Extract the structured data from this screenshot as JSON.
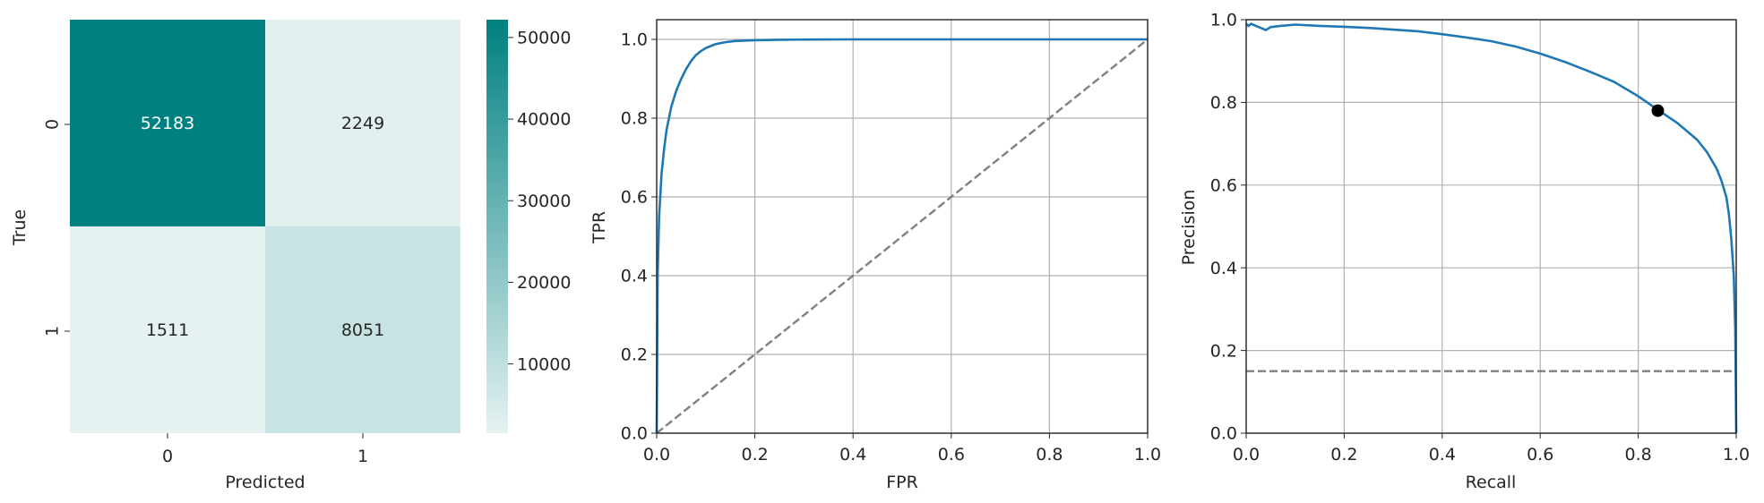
{
  "colors": {
    "teal": "#008080",
    "curve": "#1f77b4",
    "reference": "#808080",
    "grid": "#b0b0b0",
    "marker": "#000000"
  },
  "chart_data": [
    {
      "type": "heatmap",
      "xlabel": "Predicted",
      "ylabel": "True",
      "x_categories": [
        "0",
        "1"
      ],
      "y_categories": [
        "0",
        "1"
      ],
      "matrix": [
        [
          52183,
          2249
        ],
        [
          1511,
          8051
        ]
      ],
      "colorbar": {
        "min": 1511,
        "max": 52183,
        "ticks": [
          10000,
          20000,
          30000,
          40000,
          50000
        ],
        "palette": "light-to-teal"
      }
    },
    {
      "type": "line",
      "xlabel": "FPR",
      "ylabel": "TPR",
      "xlim": [
        0,
        1
      ],
      "ylim": [
        0,
        1.05
      ],
      "xticks": [
        "0.0",
        "0.2",
        "0.4",
        "0.6",
        "0.8",
        "1.0"
      ],
      "yticks": [
        "0.0",
        "0.2",
        "0.4",
        "0.6",
        "0.8",
        "1.0"
      ],
      "grid": true,
      "series": [
        {
          "style": "solid",
          "x": [
            0,
            0.002,
            0.005,
            0.01,
            0.015,
            0.02,
            0.03,
            0.04,
            0.05,
            0.06,
            0.07,
            0.08,
            0.09,
            0.1,
            0.12,
            0.14,
            0.16,
            0.2,
            0.25,
            0.3,
            0.4,
            0.5,
            0.6,
            0.7,
            0.8,
            0.9,
            1.0
          ],
          "y": [
            0,
            0.4,
            0.55,
            0.66,
            0.72,
            0.77,
            0.83,
            0.87,
            0.9,
            0.925,
            0.945,
            0.96,
            0.97,
            0.978,
            0.988,
            0.993,
            0.996,
            0.998,
            0.999,
            0.9995,
            1.0,
            1.0,
            1.0,
            1.0,
            1.0,
            1.0,
            1.0
          ]
        },
        {
          "style": "dashed",
          "x": [
            0,
            1
          ],
          "y": [
            0,
            1
          ]
        }
      ]
    },
    {
      "type": "line",
      "xlabel": "Recall",
      "ylabel": "Precision",
      "xlim": [
        0,
        1
      ],
      "ylim": [
        0,
        1
      ],
      "xticks": [
        "0.0",
        "0.2",
        "0.4",
        "0.6",
        "0.8",
        "1.0"
      ],
      "yticks": [
        "0.0",
        "0.2",
        "0.4",
        "0.6",
        "0.8",
        "1.0"
      ],
      "grid": true,
      "series": [
        {
          "style": "solid",
          "x": [
            0,
            0.005,
            0.01,
            0.02,
            0.03,
            0.04,
            0.05,
            0.07,
            0.1,
            0.15,
            0.2,
            0.25,
            0.3,
            0.35,
            0.4,
            0.45,
            0.5,
            0.55,
            0.6,
            0.65,
            0.7,
            0.75,
            0.8,
            0.84,
            0.88,
            0.9,
            0.92,
            0.94,
            0.96,
            0.97,
            0.98,
            0.985,
            0.99,
            0.995,
            0.998,
            1.0
          ],
          "y": [
            0.99,
            0.985,
            0.99,
            0.985,
            0.98,
            0.975,
            0.982,
            0.985,
            0.988,
            0.985,
            0.983,
            0.98,
            0.976,
            0.972,
            0.965,
            0.957,
            0.948,
            0.935,
            0.918,
            0.898,
            0.875,
            0.85,
            0.815,
            0.782,
            0.75,
            0.73,
            0.71,
            0.68,
            0.64,
            0.61,
            0.57,
            0.53,
            0.47,
            0.38,
            0.25,
            0.0
          ]
        },
        {
          "style": "dashed",
          "x": [
            0,
            1
          ],
          "y": [
            0.15,
            0.15
          ]
        }
      ],
      "markers": [
        {
          "x": 0.84,
          "y": 0.78
        }
      ]
    }
  ]
}
